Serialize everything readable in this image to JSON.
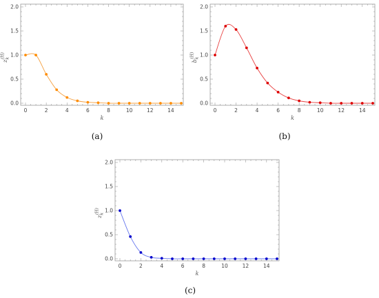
{
  "chart_data": [
    {
      "type": "scatter",
      "caption": "(a)",
      "xlabel": "k",
      "ylabel_main": "z",
      "ylabel_sub": "k",
      "ylabel_sup": "(H)",
      "xlim": [
        0,
        15
      ],
      "ylim": [
        0,
        2.0
      ],
      "xticks": [
        "0",
        "2",
        "4",
        "6",
        "8",
        "10",
        "12",
        "14"
      ],
      "yticks": [
        "0.0",
        "0.5",
        "1.0",
        "1.5",
        "2.0"
      ],
      "color": "#ff8c00",
      "curve_color": "#f5a142",
      "x": [
        0,
        1,
        2,
        3,
        4,
        5,
        6,
        7,
        8,
        9,
        10,
        11,
        12,
        13,
        14,
        15
      ],
      "y": [
        1.0,
        1.0,
        0.6,
        0.28,
        0.12,
        0.05,
        0.02,
        0.01,
        0.0,
        0.0,
        0.0,
        0.0,
        0.0,
        0.0,
        0.0,
        0.0
      ],
      "grid": false
    },
    {
      "type": "scatter",
      "caption": "(b)",
      "xlabel": "k",
      "ylabel_main": "b",
      "ylabel_sub": "k",
      "ylabel_sup": "(H)",
      "xlim": [
        0,
        15
      ],
      "ylim": [
        0,
        2.0
      ],
      "xticks": [
        "0",
        "2",
        "4",
        "6",
        "8",
        "10",
        "12",
        "14"
      ],
      "yticks": [
        "0.0",
        "0.5",
        "1.0",
        "1.5",
        "2.0"
      ],
      "color": "#dd0000",
      "curve_color": "#e84040",
      "x": [
        0,
        1,
        2,
        3,
        4,
        5,
        6,
        7,
        8,
        9,
        10,
        11,
        12,
        13,
        14,
        15
      ],
      "y": [
        1.0,
        1.6,
        1.53,
        1.15,
        0.73,
        0.42,
        0.23,
        0.11,
        0.05,
        0.02,
        0.01,
        0.0,
        0.0,
        0.0,
        0.0,
        0.0
      ],
      "grid": false
    },
    {
      "type": "scatter",
      "caption": "(c)",
      "xlabel": "k",
      "ylabel_main": "z",
      "ylabel_sub": "k",
      "ylabel_sup": "(H)",
      "xlim": [
        0,
        15
      ],
      "ylim": [
        0,
        2.0
      ],
      "xticks": [
        "0",
        "2",
        "4",
        "6",
        "8",
        "10",
        "12",
        "14"
      ],
      "yticks": [
        "0.0",
        "0.5",
        "1.0",
        "1.5",
        "2.0"
      ],
      "color": "#0000cc",
      "curve_color": "#6677ee",
      "x": [
        0,
        1,
        2,
        3,
        4,
        5,
        6,
        7,
        8,
        9,
        10,
        11,
        12,
        13,
        14,
        15
      ],
      "y": [
        1.0,
        0.46,
        0.13,
        0.03,
        0.01,
        0.0,
        0.0,
        0.0,
        0.0,
        0.0,
        0.0,
        0.0,
        0.0,
        0.0,
        0.0,
        0.0
      ],
      "grid": false
    }
  ]
}
